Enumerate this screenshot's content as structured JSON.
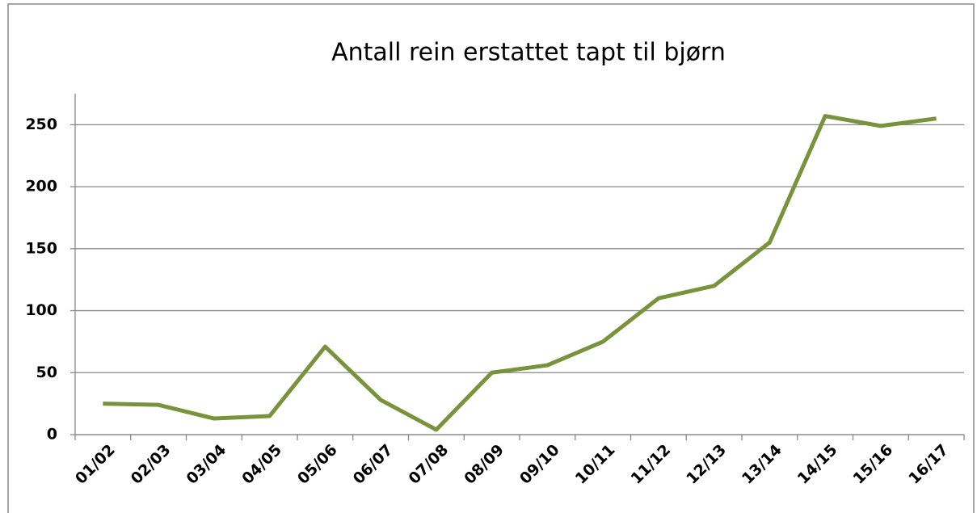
{
  "chart_data": {
    "type": "line",
    "title": "Antall rein erstattet tapt til bjørn",
    "categories": [
      "01/02",
      "02/03",
      "03/04",
      "04/05",
      "05/06",
      "06/07",
      "07/08",
      "08/09",
      "09/10",
      "10/11",
      "11/12",
      "12/13",
      "13/14",
      "14/15",
      "15/16",
      "16/17"
    ],
    "series": [
      {
        "name": "Antall rein",
        "color": "#77933c",
        "values": [
          25,
          24,
          13,
          15,
          71,
          28,
          4,
          50,
          56,
          75,
          110,
          120,
          155,
          257,
          249,
          255
        ]
      }
    ],
    "ylim": [
      0,
      275
    ],
    "yticks": [
      0,
      50,
      100,
      150,
      200,
      250
    ],
    "grid": true,
    "legend": false
  }
}
